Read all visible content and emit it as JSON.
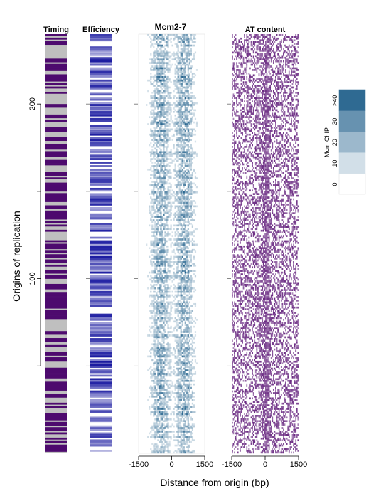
{
  "chart_data": {
    "type": "heatmap",
    "ylabel": "Origins of replication",
    "xlabel": "Distance from origin (bp)",
    "ylim": [
      0,
      240
    ],
    "y_ticks": [
      100,
      200
    ],
    "minor_y_ticks": [
      50,
      150
    ],
    "x_range": [
      -1500,
      1500
    ],
    "x_ticks": [
      "-1500",
      "0",
      "1500"
    ],
    "panels": [
      {
        "title": "Timing",
        "colors": [
          "#bfbfbf",
          "#4d0a6e"
        ]
      },
      {
        "title": "Efficiency",
        "colors": [
          "#ffffff",
          "#1a1aa0"
        ]
      },
      {
        "title": "Mcm2-7",
        "colors": [
          "#ffffff",
          "#1f5f8a"
        ]
      },
      {
        "title": "AT content",
        "colors": [
          "#ffffff",
          "#6a2a82"
        ]
      }
    ],
    "legend": {
      "title": "Mcm ChIP",
      "labels": [
        "0",
        "10",
        "20",
        "30",
        ">40"
      ],
      "colors": [
        "#ffffff",
        "#d2dfe8",
        "#9cb8cc",
        "#6792b0",
        "#2f6a92"
      ],
      "placement": "right"
    }
  }
}
